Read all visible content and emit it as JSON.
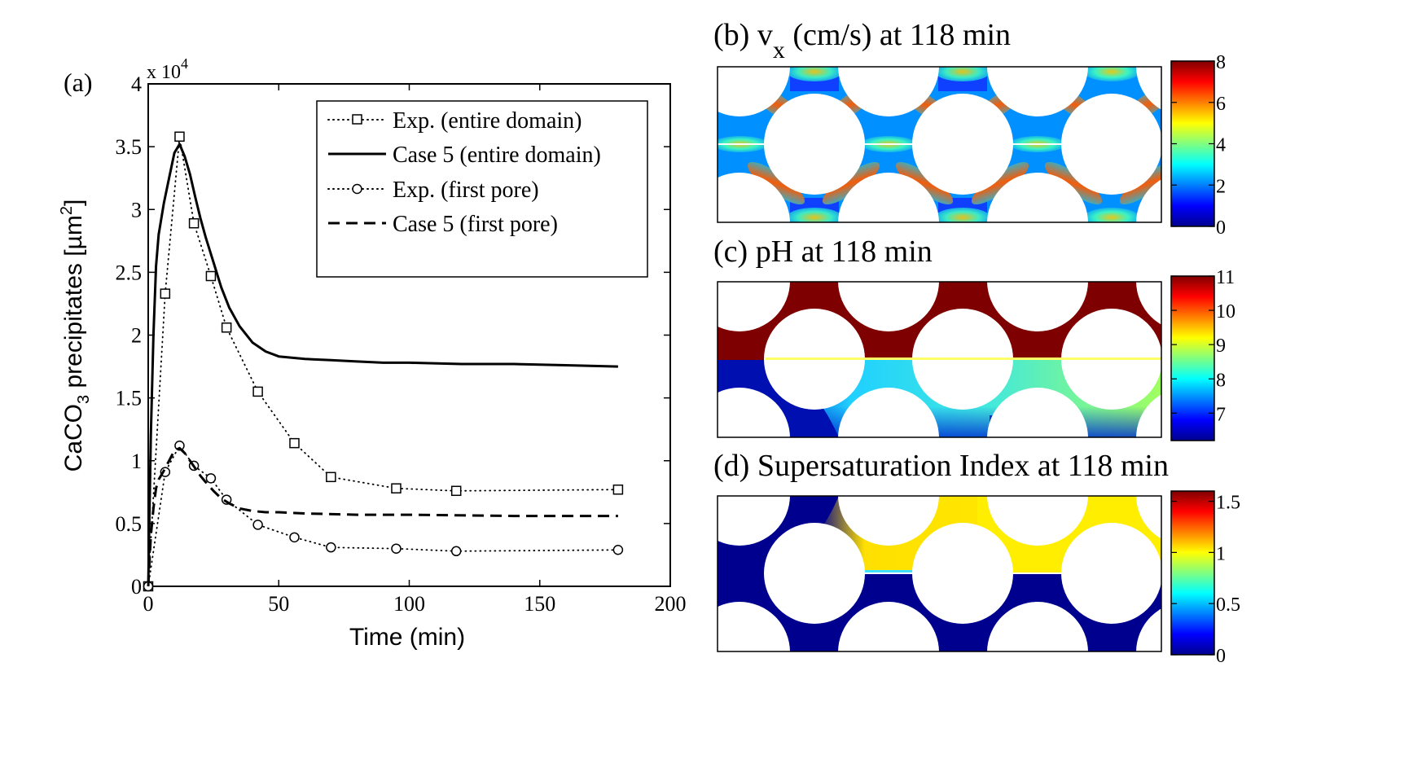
{
  "chart_data": [
    {
      "type": "line",
      "panel_label": "(a)",
      "xlabel": "Time (min)",
      "ylabel_main": "CaCO",
      "ylabel_sub": "3",
      "ylabel_rest": " precipitates [µm",
      "ylabel_sup": "2",
      "ylabel_end": "]",
      "exponent_base": "x 10",
      "exponent_power": "4",
      "xlim": [
        0,
        200
      ],
      "ylim": [
        0,
        4
      ],
      "xticks": [
        0,
        50,
        100,
        150,
        200
      ],
      "xtick_labels": [
        "0",
        "50",
        "100",
        "150",
        "200"
      ],
      "yticks": [
        0,
        0.5,
        1,
        1.5,
        2,
        2.5,
        3,
        3.5,
        4
      ],
      "ytick_labels": [
        "0",
        "0.5",
        "1",
        "1.5",
        "2",
        "2.5",
        "3",
        "3.5",
        "4"
      ],
      "legend_position": "top-right",
      "series": [
        {
          "name": "Exp. (entire domain)",
          "style": "dotted",
          "marker": "square",
          "x": [
            0,
            6.5,
            12,
            17.5,
            24,
            30,
            42,
            56,
            70,
            95,
            118,
            180
          ],
          "y": [
            0,
            2.33,
            3.58,
            2.89,
            2.47,
            2.06,
            1.55,
            1.14,
            0.87,
            0.78,
            0.76,
            0.77
          ]
        },
        {
          "name": "Case 5 (entire domain)",
          "style": "solid",
          "marker": "none",
          "x": [
            0,
            1,
            2,
            3,
            4,
            6,
            8,
            10,
            12,
            14,
            16,
            18,
            20,
            22,
            25,
            28,
            31,
            35,
            40,
            45,
            50,
            55,
            60,
            70,
            80,
            90,
            100,
            120,
            140,
            160,
            180
          ],
          "y": [
            0,
            1.2,
            2.0,
            2.55,
            2.8,
            3.05,
            3.25,
            3.45,
            3.52,
            3.42,
            3.28,
            3.1,
            2.93,
            2.78,
            2.58,
            2.38,
            2.22,
            2.07,
            1.94,
            1.87,
            1.83,
            1.82,
            1.81,
            1.8,
            1.79,
            1.78,
            1.78,
            1.77,
            1.77,
            1.76,
            1.75
          ]
        },
        {
          "name": "Exp. (first pore)",
          "style": "dotted",
          "marker": "circle",
          "x": [
            0,
            6.5,
            12,
            17.5,
            24,
            30,
            42,
            56,
            70,
            95,
            118,
            180
          ],
          "y": [
            0,
            0.91,
            1.12,
            0.96,
            0.86,
            0.69,
            0.49,
            0.39,
            0.31,
            0.3,
            0.28,
            0.29
          ]
        },
        {
          "name": "Case 5 (first pore)",
          "style": "dashed",
          "marker": "none",
          "x": [
            0,
            1,
            2,
            3,
            4,
            6,
            8,
            10,
            12,
            14,
            16,
            18,
            20,
            22,
            25,
            28,
            31,
            35,
            40,
            45,
            50,
            60,
            80,
            100,
            140,
            180
          ],
          "y": [
            0,
            0.4,
            0.62,
            0.78,
            0.85,
            0.92,
            1.0,
            1.08,
            1.1,
            1.06,
            1.0,
            0.94,
            0.88,
            0.83,
            0.76,
            0.7,
            0.66,
            0.62,
            0.6,
            0.59,
            0.59,
            0.58,
            0.57,
            0.57,
            0.56,
            0.56
          ]
        }
      ]
    },
    {
      "type": "heatmap",
      "panel_label": "(b)",
      "title_prefix": "v",
      "title_sub": "x",
      "title_suffix": " (cm/s) at 118 min",
      "colorbar_ticks": [
        0,
        2,
        4,
        6,
        8
      ],
      "colorbar_labels": [
        "0",
        "2",
        "4",
        "6",
        "8"
      ],
      "colorbar_range": [
        0,
        8
      ]
    },
    {
      "type": "heatmap",
      "panel_label": "(c)",
      "title": "pH at 118 min",
      "colorbar_ticks": [
        7,
        8,
        9,
        10,
        11
      ],
      "colorbar_labels": [
        "7",
        "8",
        "9",
        "10",
        "11"
      ],
      "colorbar_range": [
        6.2,
        11
      ]
    },
    {
      "type": "heatmap",
      "panel_label": "(d)",
      "title": "Supersaturation Index at 118 min",
      "colorbar_ticks": [
        0,
        0.5,
        1,
        1.5
      ],
      "colorbar_labels": [
        "0",
        "0.5",
        "1",
        "1.5"
      ],
      "colorbar_range": [
        0,
        1.6
      ]
    }
  ]
}
